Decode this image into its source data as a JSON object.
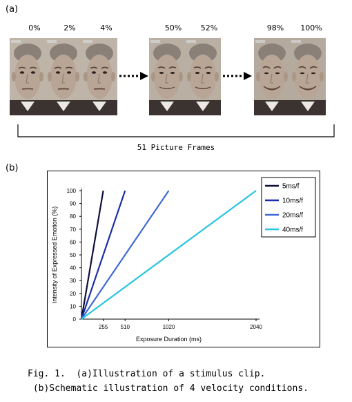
{
  "panel_a": {
    "label": "(a)",
    "percents": [
      "0%",
      "2%",
      "4%",
      "50%",
      "52%",
      "98%",
      "100%"
    ],
    "frames_label": "51 Picture Frames"
  },
  "panel_b": {
    "label": "(b)"
  },
  "chart_data": {
    "type": "line",
    "xlabel": "Exposure Duration (ms)",
    "ylabel": "Intensity of Expressed Emotion (%)",
    "xlim": [
      0,
      2040
    ],
    "ylim": [
      0,
      100
    ],
    "x_ticks": [
      255,
      510,
      1020,
      2040
    ],
    "y_ticks": [
      0,
      10,
      20,
      30,
      40,
      50,
      60,
      70,
      80,
      90,
      100
    ],
    "legend_position": "top-right",
    "grid": false,
    "series": [
      {
        "name": "5ms/f",
        "color": "#0d0d3a",
        "x": [
          0,
          255
        ],
        "y": [
          0,
          100
        ]
      },
      {
        "name": "10ms/f",
        "color": "#1a2fa8",
        "x": [
          0,
          510
        ],
        "y": [
          0,
          100
        ]
      },
      {
        "name": "20ms/f",
        "color": "#3f68d6",
        "x": [
          0,
          1020
        ],
        "y": [
          0,
          100
        ]
      },
      {
        "name": "40ms/f",
        "color": "#26c4e2",
        "x": [
          0,
          2040
        ],
        "y": [
          0,
          100
        ]
      }
    ]
  },
  "caption": {
    "line1": "Fig. 1.  (a)Illustration of a stimulus clip.",
    "line2": " (b)Schematic illustration of 4 velocity conditions."
  }
}
